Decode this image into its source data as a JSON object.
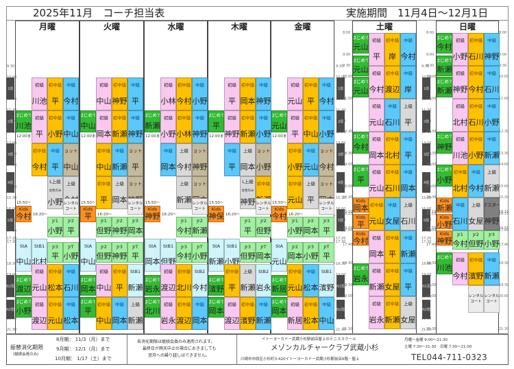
{
  "header": {
    "title": "2025年11月　コーチ担当表",
    "period": "実施期間　11月4日〜12月1日"
  },
  "days": {
    "mon": "月曜",
    "tue": "火曜",
    "wed": "水曜",
    "thu": "木曜",
    "fri": "金曜",
    "sat": "土曜",
    "sun": "日曜"
  },
  "levels": {
    "sho": "初級",
    "shochu": "初中級",
    "chu": "中級",
    "jo": "上級",
    "shot": "ショット別",
    "hajime": "はじめて",
    "kids": "Kids",
    "lj": "L上級",
    "lj_sub": "女性のみ",
    "master": "マスター",
    "rental": "レンタル\nコート",
    "sta": "StA",
    "stb1": "StB1",
    "stb2": "StB2",
    "jr1": "Jr1",
    "jr2": "Jr2",
    "jr3": "Jr3",
    "jrt": "JrT"
  },
  "weekday_times": [
    "9:30",
    "10:00",
    "11:00",
    "11:30",
    "12:00",
    "12:30",
    "13:00",
    "13:30",
    "14:00",
    "15:00",
    "15:30",
    "16:00",
    "16:30",
    "17:00",
    "17:20",
    "17:30",
    "18:30",
    "19:00",
    "19:30",
    "20:00",
    "21:00",
    "21:30"
  ],
  "weekday_periods": [
    "1限",
    "2限",
    "3限",
    "4限",
    "5限",
    "N1限",
    "N2限"
  ],
  "weekend_times": [
    "8:00",
    "9:00",
    "9:30",
    "10:00",
    "11:00",
    "12:30",
    "13:30",
    "14:00",
    "15:00",
    "15:30",
    "16:10",
    "16:15",
    "16:55",
    "17:00",
    "17:40",
    "18:30",
    "19:30",
    "20:00",
    "21:30"
  ],
  "notes": {
    "until_1230": "12:00まで",
    "kids_start": "15:50〜",
    "jr_start": "16:20〜"
  },
  "schedule": {
    "mon": {
      "p1": [
        "川池",
        "平",
        "今村"
      ],
      "hajime1": "川池",
      "p2": [
        "平",
        "小野",
        "中山"
      ],
      "p3": [
        "今村",
        "平",
        "中山"
      ],
      "p4": [
        "小野",
        "今村"
      ],
      "kids": "今村",
      "jr_a": [
        "小野",
        "平"
      ],
      "sta": "中山",
      "stb1": "北村",
      "jr_b": [
        "平",
        "小野"
      ],
      "n1_hajime": "渡辺",
      "n1": [
        "元山",
        "松本",
        "石川"
      ],
      "n2_hajime": "小野",
      "n2": [
        "渡辺",
        "元山",
        "松本"
      ]
    },
    "tue": {
      "p1": [
        "中山",
        "神野",
        "平"
      ],
      "hajime1": "中山",
      "p2": [
        "岡本",
        "新瀬",
        "神野"
      ],
      "p3": [
        "中山",
        "新瀬",
        "平"
      ],
      "p4": [
        "平",
        "岡本",
        "神野"
      ],
      "kids": "平",
      "jr_a": [
        "但野",
        "神野",
        "岡本"
      ],
      "sta": "中山",
      "jr_b": [
        "但野",
        "神野",
        "平"
      ],
      "n1_hajime": "岡本",
      "n1": [
        "中山",
        "平",
        "新瀬"
      ],
      "n2_hajime": "平",
      "n2": [
        "中山",
        "岡本",
        "新瀬"
      ]
    },
    "wed": {
      "p1": [
        "小林",
        "今村",
        "小野"
      ],
      "hajime1": "新瀬",
      "p2": [
        "小野",
        "小林",
        "神野"
      ],
      "p3": [
        "岡本",
        "今村",
        "神野"
      ],
      "p4": [
        "新瀬",
        "岡本"
      ],
      "kids": "神野",
      "jr_a": [
        "今村",
        "新瀬"
      ],
      "sta": "岡本",
      "stb1": "但野",
      "jr_b": [
        "今村",
        "小野"
      ],
      "n1_hajime": "岩永",
      "n1": [
        "渡辺",
        "北川",
        "今村"
      ],
      "n2_hajime": "北川",
      "n2": [
        "岩永",
        "渡辺",
        "岡本"
      ]
    },
    "thu": {
      "p1": [
        "平",
        "岡本",
        "神野"
      ],
      "hajime1": "平",
      "p2": [
        "神野",
        "新瀬",
        "小野"
      ],
      "p3": [
        "平",
        "岡本",
        "小野"
      ],
      "p4": [
        "神野",
        "新瀬"
      ],
      "kids": "神保",
      "jr_a": [
        "平",
        "但野"
      ],
      "sta": "新瀬",
      "stb1": "小野",
      "jr_b": [
        "但野",
        "岡本"
      ],
      "n1_hajime": "濱野",
      "n1": [
        "平",
        "新瀬",
        "岩永"
      ],
      "n2_hajime": "岡本",
      "n2": [
        "渡辺",
        "濱野",
        "新瀬"
      ]
    },
    "fri": {
      "p1": [
        "元山",
        "平",
        "今村"
      ],
      "hajime1": "元山",
      "p2": [
        "平",
        "中山",
        "小野"
      ],
      "p3": [
        "小野",
        "元山",
        "今村"
      ],
      "p4": [
        "元山",
        "平",
        "岡本"
      ],
      "kids": "今村",
      "jr_a": [
        "小野",
        "岡本",
        "平"
      ],
      "sta": "元山",
      "jr_b": [
        "岡本",
        "小野",
        "平"
      ],
      "n1_hajime": "新居",
      "n1": [
        "元山",
        "松本",
        "濱野"
      ],
      "n2_hajime": "岡本",
      "n2": [
        "新居",
        "松本",
        "中山"
      ]
    },
    "sat": {
      "h1": "元山",
      "h2": "元山",
      "h3": "元山",
      "h4": "今村",
      "h5": "平",
      "h6": "岩永",
      "kids1": "岡本",
      "kids2": "平",
      "kids3": "今村",
      "b1": [
        "平",
        "岸",
        "今村"
      ],
      "b2": [
        "今村",
        "渡辺",
        "岸"
      ],
      "b3": [
        "元山",
        "石川",
        "平"
      ],
      "b4": [
        "岡本",
        "北村",
        "平"
      ],
      "b5": [
        "元山",
        "石川",
        "岡本"
      ],
      "b6": [
        "元山",
        "女屋",
        "石川"
      ],
      "b7": [
        "岡本",
        "平",
        "新瀬"
      ],
      "b8": [
        "新瀬",
        "女屋",
        "平"
      ],
      "b9": [
        "岩永",
        "新瀬",
        "女屋"
      ]
    },
    "sun": {
      "h1": "今村",
      "h2": "新瀬",
      "h3": "新瀬",
      "h4": "神野",
      "h5": "小野",
      "h6": "川池",
      "kids1": "新瀬",
      "kids2": "小野",
      "kids3": "神野",
      "b1": [
        "小野",
        "石川",
        "神野"
      ],
      "b2": [
        "神野",
        "今村",
        "石川"
      ],
      "b3": [
        "北村",
        "石川",
        "小野"
      ],
      "b4": [
        "川池",
        "小野",
        "新瀬"
      ],
      "b5": [
        "北村",
        "今村",
        "新瀬"
      ],
      "b6": [
        "石川",
        "女屋",
        "神野"
      ],
      "jr": [
        "今村",
        "但野",
        "小野"
      ],
      "b8": [
        "今村",
        "濱野",
        "新瀬"
      ]
    }
  },
  "footer": {
    "makeup_title": "振替消化期限",
    "makeup_sub": "(継続会員のみ)",
    "makeup_rows": [
      "8月期：  11/3（月）まで",
      "9月期：  12/1（月）まで",
      "10月期：  1/17（土）まで"
    ],
    "notice": [
      "各消化期限は継続会員のみ適用されます。",
      "最終日が雨天中止の場合におきましても",
      "翌月への繰り越しはできません。"
    ],
    "club_sub": "イトーヨーカドー武蔵小杉駅前店屋上のテニススクール",
    "club_name": "メゾンカルチャークラブ武蔵小杉",
    "address": "川崎市中原区小杉町3-420イトーヨーカドー武蔵小杉駅前店6階・屋上",
    "hours1": "月曜〜金曜  9:00〜21:30",
    "hours2": "土曜  7:30〜21:30　日曜  7:30〜21:00",
    "tel": "TEL044-711-0323"
  }
}
